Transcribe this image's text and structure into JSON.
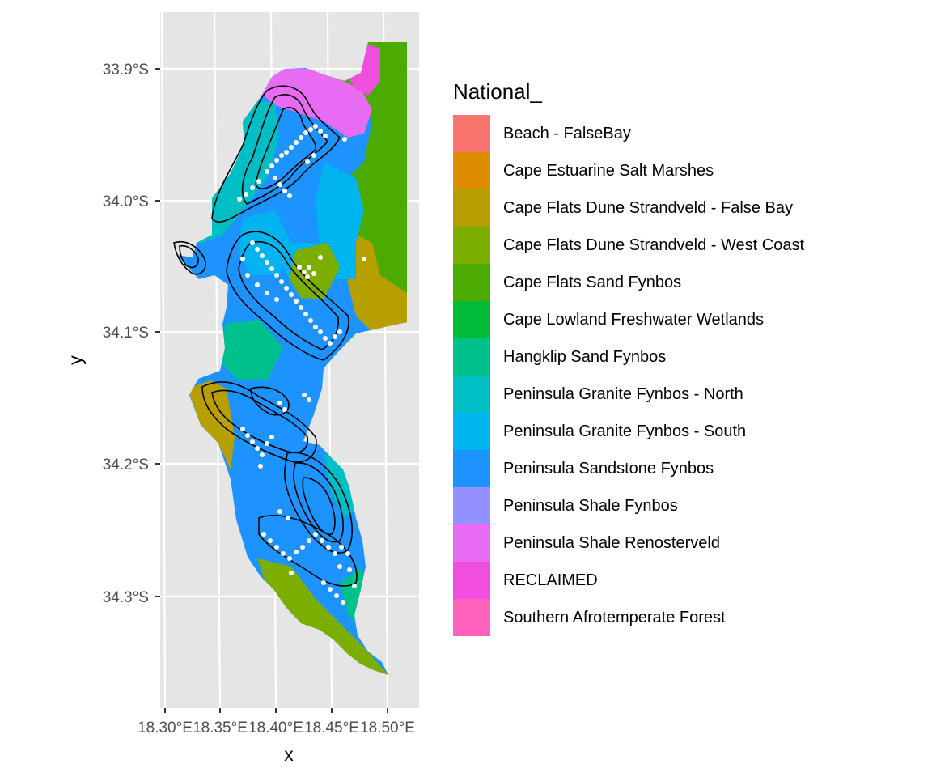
{
  "axes": {
    "x_title": "x",
    "y_title": "y",
    "x_ticks": [
      {
        "value": 18.3,
        "label": "18.30°E"
      },
      {
        "value": 18.35,
        "label": "18.35°E"
      },
      {
        "value": 18.4,
        "label": "18.40°E"
      },
      {
        "value": 18.45,
        "label": "18.45°E"
      },
      {
        "value": 18.5,
        "label": "18.50°E"
      }
    ],
    "y_ticks": [
      {
        "value": -33.9,
        "label": "33.9°S"
      },
      {
        "value": -34.0,
        "label": "34.0°S"
      },
      {
        "value": -34.1,
        "label": "34.1°S"
      },
      {
        "value": -34.2,
        "label": "34.2°S"
      },
      {
        "value": -34.3,
        "label": "34.3°S"
      }
    ],
    "panel_background": "#e5e5e5",
    "grid_color": "#ffffff"
  },
  "legend": {
    "title": "National_",
    "items": [
      {
        "label": "Beach - FalseBay",
        "color": "#f8766d"
      },
      {
        "label": "Cape Estuarine Salt Marshes",
        "color": "#de8c00"
      },
      {
        "label": "Cape Flats Dune Strandveld - False Bay",
        "color": "#b79f00"
      },
      {
        "label": "Cape Flats Dune Strandveld - West Coast",
        "color": "#7cae00"
      },
      {
        "label": "Cape Flats Sand Fynbos",
        "color": "#4cab00"
      },
      {
        "label": "Cape Lowland Freshwater Wetlands",
        "color": "#00ba38"
      },
      {
        "label": "Hangklip Sand Fynbos",
        "color": "#00c08b"
      },
      {
        "label": "Peninsula Granite Fynbos - North",
        "color": "#00bfc4"
      },
      {
        "label": "Peninsula Granite Fynbos - South",
        "color": "#00b4f0"
      },
      {
        "label": "Peninsula Sandstone Fynbos",
        "color": "#1c93ff"
      },
      {
        "label": "Peninsula Shale Fynbos",
        "color": "#9590ff"
      },
      {
        "label": "Peninsula Shale Renosterveld",
        "color": "#e76bf3"
      },
      {
        "label": "RECLAIMED",
        "color": "#f14ee0"
      },
      {
        "label": "Southern Afrotemperate Forest",
        "color": "#ff62bc"
      }
    ]
  }
}
